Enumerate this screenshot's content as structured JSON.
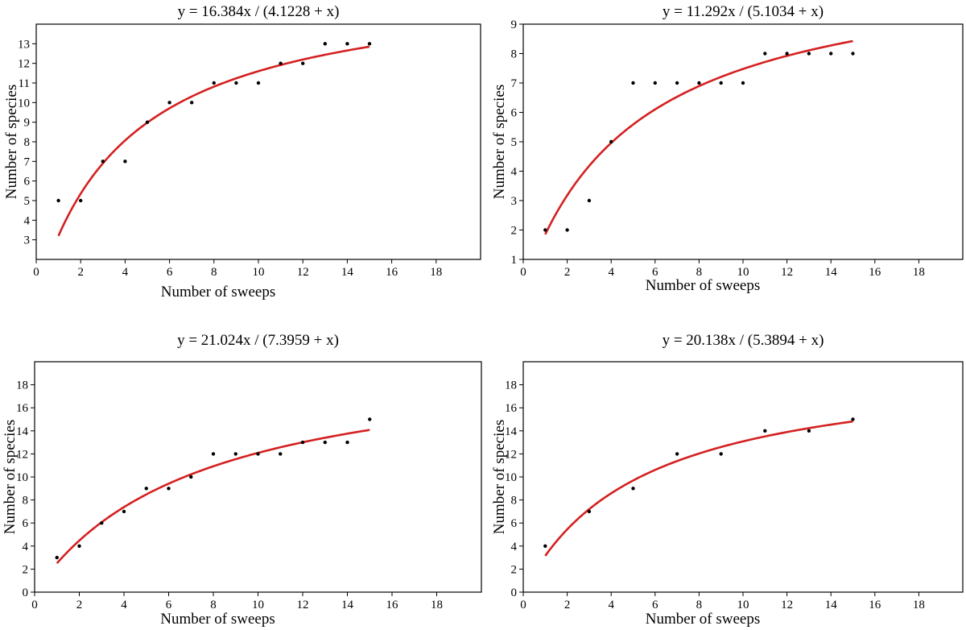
{
  "chart_data": [
    {
      "type": "scatter",
      "title": "y = 16.384x / (4.1228 + x)",
      "xlabel": "Number of sweeps",
      "ylabel": "Number of species",
      "xlim": [
        0,
        20
      ],
      "ylim": [
        2,
        14
      ],
      "xticks": [
        0,
        2,
        4,
        6,
        8,
        10,
        12,
        14,
        16,
        18
      ],
      "yticks": [
        3,
        4,
        5,
        6,
        7,
        8,
        9,
        10,
        11,
        12,
        13
      ],
      "grid": false,
      "points": {
        "x": [
          1,
          2,
          3,
          4,
          5,
          6,
          7,
          8,
          9,
          10,
          11,
          12,
          13,
          14,
          15
        ],
        "y": [
          5,
          5,
          7,
          7,
          9,
          10,
          10,
          11,
          11,
          11,
          12,
          12,
          13,
          13,
          13
        ]
      },
      "fit": {
        "a": 16.384,
        "b": 4.1228,
        "xrange": [
          1,
          15
        ],
        "color": "#d42020"
      }
    },
    {
      "type": "scatter",
      "title": "y = 11.292x / (5.1034 + x)",
      "xlabel": "Number of sweeps",
      "ylabel": "Number of species",
      "xlim": [
        0,
        20
      ],
      "ylim": [
        1,
        9
      ],
      "xticks": [
        0,
        2,
        4,
        6,
        8,
        10,
        12,
        14,
        16,
        18
      ],
      "yticks": [
        1,
        2,
        3,
        4,
        5,
        6,
        7,
        8,
        9
      ],
      "grid": false,
      "points": {
        "x": [
          1,
          2,
          3,
          4,
          5,
          6,
          7,
          8,
          9,
          10,
          11,
          12,
          13,
          14,
          15
        ],
        "y": [
          2,
          2,
          3,
          5,
          7,
          7,
          7,
          7,
          7,
          7,
          8,
          8,
          8,
          8,
          8
        ]
      },
      "fit": {
        "a": 11.292,
        "b": 5.1034,
        "xrange": [
          1,
          15
        ],
        "color": "#d42020"
      }
    },
    {
      "type": "scatter",
      "title": "y = 21.024x / (7.3959 + x)",
      "xlabel": "Number of sweeps",
      "ylabel": "Number of species",
      "xlim": [
        0,
        20
      ],
      "ylim": [
        0,
        20
      ],
      "xticks": [
        0,
        2,
        4,
        6,
        8,
        10,
        12,
        14,
        16,
        18
      ],
      "yticks": [
        0,
        2,
        4,
        6,
        8,
        10,
        12,
        14,
        16,
        18
      ],
      "grid": false,
      "points": {
        "x": [
          1,
          2,
          3,
          4,
          5,
          6,
          7,
          8,
          9,
          10,
          11,
          12,
          13,
          14,
          15
        ],
        "y": [
          3,
          4,
          6,
          7,
          9,
          9,
          10,
          12,
          12,
          12,
          12,
          13,
          13,
          13,
          15
        ]
      },
      "fit": {
        "a": 21.024,
        "b": 7.3959,
        "xrange": [
          1,
          15
        ],
        "color": "#d42020"
      }
    },
    {
      "type": "scatter",
      "title": "y = 20.138x / (5.3894 + x)",
      "xlabel": "Number of sweeps",
      "ylabel": "Number of species",
      "xlim": [
        0,
        20
      ],
      "ylim": [
        0,
        20
      ],
      "xticks": [
        0,
        2,
        4,
        6,
        8,
        10,
        12,
        14,
        16,
        18
      ],
      "yticks": [
        0,
        2,
        4,
        6,
        8,
        10,
        12,
        14,
        16,
        18
      ],
      "grid": false,
      "points": {
        "x": [
          1,
          3,
          5,
          7,
          9,
          11,
          13,
          15
        ],
        "y": [
          4,
          7,
          9,
          12,
          12,
          14,
          14,
          15
        ]
      },
      "fit": {
        "a": 20.138,
        "b": 5.3894,
        "xrange": [
          1,
          15
        ],
        "color": "#d42020"
      }
    }
  ]
}
